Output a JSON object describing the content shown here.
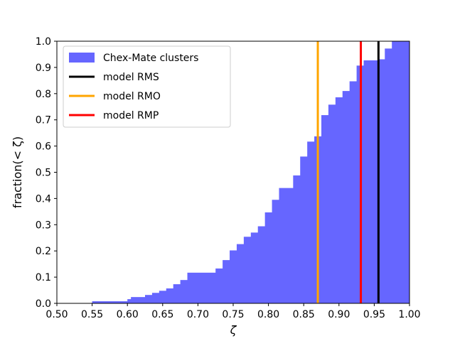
{
  "chart_data": {
    "type": "bar",
    "subtype": "cumulative-histogram",
    "title": "",
    "xlabel": "ζ",
    "ylabel": "fraction(< ζ)",
    "xlim": [
      0.5,
      1.0
    ],
    "ylim": [
      0.0,
      1.0
    ],
    "xticks": [
      "0.50",
      "0.55",
      "0.60",
      "0.65",
      "0.70",
      "0.75",
      "0.80",
      "0.85",
      "0.90",
      "0.95",
      "1.00"
    ],
    "yticks": [
      "0.0",
      "0.1",
      "0.2",
      "0.3",
      "0.4",
      "0.5",
      "0.6",
      "0.7",
      "0.8",
      "0.9",
      "1.0"
    ],
    "grid": false,
    "legend_position": "top-left",
    "histogram": {
      "name": "Chex-Mate clusters",
      "color": "#6666ff",
      "bins": [
        [
          0.55,
          0.575,
          0.008
        ],
        [
          0.575,
          0.6,
          0.008
        ],
        [
          0.6,
          0.605,
          0.016
        ],
        [
          0.605,
          0.625,
          0.024
        ],
        [
          0.625,
          0.635,
          0.032
        ],
        [
          0.635,
          0.645,
          0.04
        ],
        [
          0.645,
          0.655,
          0.048
        ],
        [
          0.655,
          0.665,
          0.057
        ],
        [
          0.665,
          0.675,
          0.073
        ],
        [
          0.675,
          0.685,
          0.089
        ],
        [
          0.685,
          0.725,
          0.117
        ],
        [
          0.725,
          0.735,
          0.133
        ],
        [
          0.735,
          0.745,
          0.165
        ],
        [
          0.745,
          0.755,
          0.202
        ],
        [
          0.755,
          0.765,
          0.226
        ],
        [
          0.765,
          0.775,
          0.254
        ],
        [
          0.775,
          0.785,
          0.27
        ],
        [
          0.785,
          0.795,
          0.294
        ],
        [
          0.795,
          0.805,
          0.347
        ],
        [
          0.805,
          0.815,
          0.395
        ],
        [
          0.815,
          0.835,
          0.44
        ],
        [
          0.835,
          0.845,
          0.488
        ],
        [
          0.845,
          0.855,
          0.56
        ],
        [
          0.855,
          0.865,
          0.617
        ],
        [
          0.865,
          0.875,
          0.637
        ],
        [
          0.875,
          0.885,
          0.718
        ],
        [
          0.885,
          0.895,
          0.758
        ],
        [
          0.895,
          0.905,
          0.786
        ],
        [
          0.905,
          0.915,
          0.81
        ],
        [
          0.915,
          0.925,
          0.847
        ],
        [
          0.925,
          0.935,
          0.907
        ],
        [
          0.935,
          0.945,
          0.927
        ],
        [
          0.945,
          0.955,
          0.927
        ],
        [
          0.955,
          0.965,
          0.931
        ],
        [
          0.965,
          0.975,
          0.972
        ],
        [
          0.975,
          1.0,
          1.0
        ]
      ]
    },
    "vlines": [
      {
        "name": "model RMS",
        "x": 0.956,
        "color": "#000000"
      },
      {
        "name": "model RMO",
        "x": 0.87,
        "color": "#ffa500"
      },
      {
        "name": "model RMP",
        "x": 0.931,
        "color": "#ff0000"
      }
    ]
  }
}
